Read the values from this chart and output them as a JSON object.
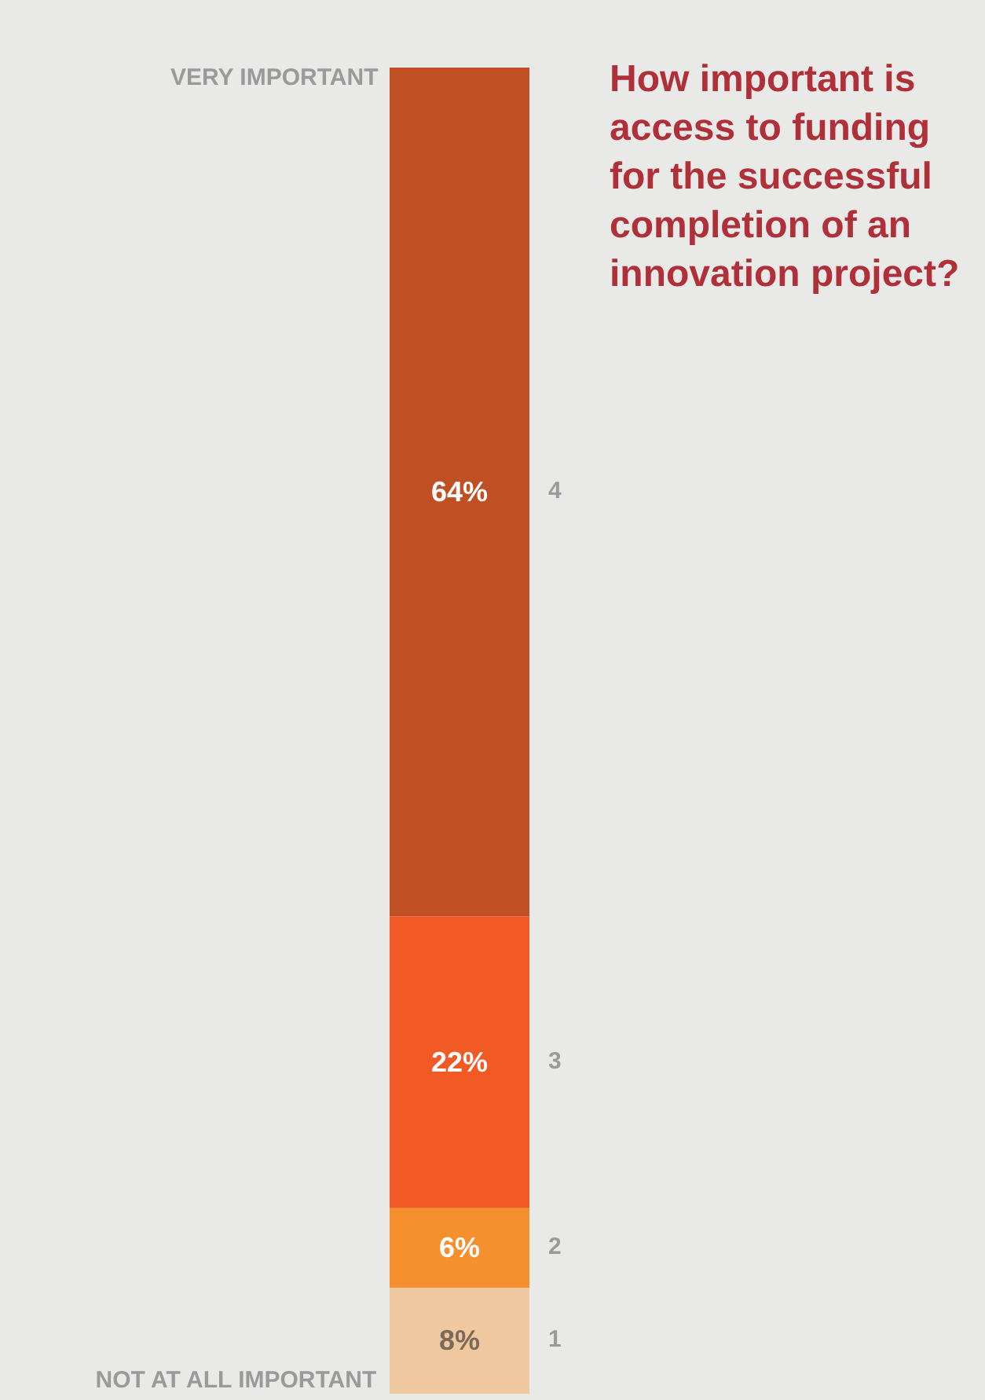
{
  "chart_data": {
    "type": "bar",
    "title": "How important is access to funding for the successful completion of an innovation project?",
    "stacked": true,
    "categories": [
      null
    ],
    "annotations": [
      "VERY IMPORTANT",
      "NOT AT ALL IMPORTANT"
    ],
    "series": [
      {
        "name": "1",
        "color": "#f0c8a0",
        "values": [
          8
        ],
        "value_labels": [
          "8%"
        ]
      },
      {
        "name": "2",
        "color": "#f6902f",
        "values": [
          6
        ],
        "value_labels": [
          "6%"
        ]
      },
      {
        "name": "3",
        "color": "#f15a24",
        "values": [
          22
        ],
        "value_labels": [
          "22%"
        ]
      },
      {
        "name": "4",
        "color": "#c05024",
        "values": [
          64
        ],
        "value_labels": [
          "64%"
        ]
      }
    ]
  }
}
